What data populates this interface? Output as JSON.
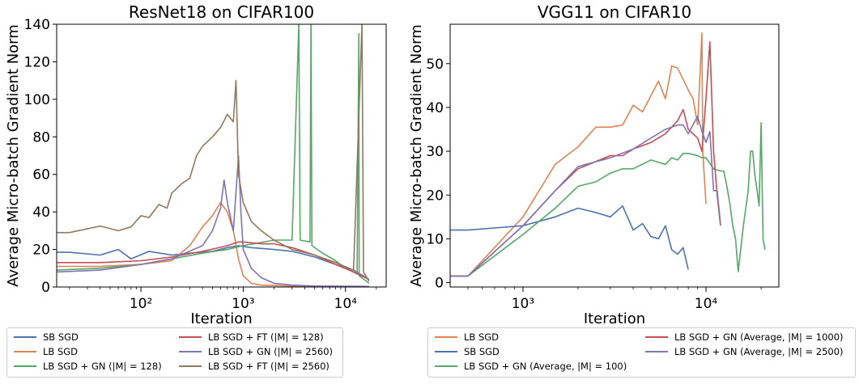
{
  "chart_data": [
    {
      "type": "line",
      "title": "ResNet18 on CIFAR100",
      "xlabel": "Iteration",
      "ylabel": "Average Micro-batch Gradient Norm",
      "xscale": "log",
      "xlim": [
        15,
        25000
      ],
      "ylim": [
        0,
        140
      ],
      "yticks": [
        0,
        20,
        40,
        60,
        80,
        100,
        120,
        140
      ],
      "xtick_labels": [
        "10²",
        "10³",
        "10⁴"
      ],
      "xticks": [
        100,
        1000,
        10000
      ],
      "legend_placement": "below",
      "series": [
        {
          "name": "SB SGD",
          "color": "#4c72b0",
          "points": [
            [
              15,
              18.5
            ],
            [
              20,
              18.5
            ],
            [
              40,
              17
            ],
            [
              60,
              20
            ],
            [
              80,
              15
            ],
            [
              120,
              19
            ],
            [
              200,
              17
            ],
            [
              300,
              18
            ],
            [
              500,
              19
            ],
            [
              700,
              21
            ],
            [
              900,
              22
            ],
            [
              1200,
              21
            ],
            [
              2000,
              20
            ],
            [
              3000,
              19
            ],
            [
              5000,
              16
            ],
            [
              8000,
              12
            ],
            [
              12000,
              9
            ],
            [
              17000,
              4
            ]
          ]
        },
        {
          "name": "LB SGD",
          "color": "#dd8452",
          "points": [
            [
              15,
              11
            ],
            [
              40,
              11
            ],
            [
              100,
              12
            ],
            [
              200,
              14
            ],
            [
              300,
              22
            ],
            [
              400,
              32
            ],
            [
              500,
              38
            ],
            [
              600,
              45
            ],
            [
              700,
              40
            ],
            [
              800,
              30
            ],
            [
              900,
              15
            ],
            [
              1000,
              6
            ],
            [
              1200,
              2
            ],
            [
              1500,
              1
            ],
            [
              3000,
              0.5
            ],
            [
              17000,
              0.3
            ]
          ]
        },
        {
          "name": "LB SGD + GN (|M| = 128)",
          "color": "#55a868",
          "points": [
            [
              15,
              9
            ],
            [
              40,
              10
            ],
            [
              100,
              12
            ],
            [
              200,
              15
            ],
            [
              400,
              18
            ],
            [
              700,
              20
            ],
            [
              1000,
              22
            ],
            [
              2000,
              25
            ],
            [
              3000,
              25
            ],
            [
              3500,
              140
            ],
            [
              3600,
              25
            ],
            [
              4500,
              24
            ],
            [
              4600,
              140
            ],
            [
              4700,
              22
            ],
            [
              6000,
              18
            ],
            [
              8000,
              14
            ],
            [
              10000,
              10
            ],
            [
              13000,
              7
            ],
            [
              13500,
              135
            ],
            [
              13600,
              6
            ],
            [
              17000,
              2
            ]
          ]
        },
        {
          "name": "LB SGD + FT (|M| = 128)",
          "color": "#c44e52",
          "points": [
            [
              15,
              13
            ],
            [
              40,
              13
            ],
            [
              100,
              14
            ],
            [
              200,
              16
            ],
            [
              400,
              19
            ],
            [
              700,
              22
            ],
            [
              900,
              24
            ],
            [
              1000,
              24
            ],
            [
              1500,
              23
            ],
            [
              2000,
              23
            ],
            [
              3000,
              21
            ],
            [
              5000,
              17
            ],
            [
              8000,
              12
            ],
            [
              12000,
              8
            ],
            [
              17000,
              4
            ]
          ]
        },
        {
          "name": "LB SGD + GN (|M| = 2560)",
          "color": "#8172b2",
          "points": [
            [
              15,
              8
            ],
            [
              40,
              9
            ],
            [
              100,
              12
            ],
            [
              200,
              15
            ],
            [
              400,
              22
            ],
            [
              500,
              30
            ],
            [
              600,
              42
            ],
            [
              650,
              57
            ],
            [
              700,
              45
            ],
            [
              800,
              30
            ],
            [
              900,
              70
            ],
            [
              950,
              40
            ],
            [
              1000,
              20
            ],
            [
              1200,
              10
            ],
            [
              1500,
              5
            ],
            [
              2000,
              2
            ],
            [
              3000,
              1
            ],
            [
              5000,
              0.5
            ],
            [
              17000,
              0.3
            ]
          ]
        },
        {
          "name": "LB SGD + FT (|M| = 2560)",
          "color": "#937860",
          "points": [
            [
              15,
              29
            ],
            [
              20,
              29
            ],
            [
              40,
              32.5
            ],
            [
              60,
              30
            ],
            [
              80,
              32
            ],
            [
              100,
              38
            ],
            [
              120,
              37
            ],
            [
              150,
              44
            ],
            [
              180,
              42
            ],
            [
              200,
              50
            ],
            [
              250,
              55
            ],
            [
              300,
              58
            ],
            [
              350,
              70
            ],
            [
              400,
              75
            ],
            [
              500,
              80
            ],
            [
              600,
              85
            ],
            [
              700,
              92
            ],
            [
              800,
              88
            ],
            [
              850,
              110
            ],
            [
              900,
              60
            ],
            [
              1000,
              45
            ],
            [
              1200,
              35
            ],
            [
              1500,
              30
            ],
            [
              2000,
              25
            ],
            [
              3000,
              20
            ],
            [
              5000,
              17
            ],
            [
              8000,
              13
            ],
            [
              12000,
              9
            ],
            [
              14500,
              140
            ],
            [
              15000,
              8
            ],
            [
              17000,
              3
            ]
          ]
        }
      ]
    },
    {
      "type": "line",
      "title": "VGG11 on CIFAR10",
      "xlabel": "Iteration",
      "ylabel": "Average Micro-batch Gradient Norm",
      "xscale": "log",
      "xlim": [
        400,
        25000
      ],
      "ylim": [
        -1,
        59
      ],
      "yticks": [
        0,
        10,
        20,
        30,
        40,
        50
      ],
      "xtick_labels": [
        "10³",
        "10⁴"
      ],
      "xticks": [
        1000,
        10000
      ],
      "legend_placement": "below",
      "series": [
        {
          "name": "LB SGD",
          "color": "#dd8452",
          "points": [
            [
              400,
              1.5
            ],
            [
              500,
              1.5
            ],
            [
              1000,
              15
            ],
            [
              1500,
              27
            ],
            [
              2000,
              31
            ],
            [
              2500,
              35.5
            ],
            [
              3000,
              35.5
            ],
            [
              3500,
              36
            ],
            [
              4000,
              40.5
            ],
            [
              4500,
              39
            ],
            [
              5500,
              46
            ],
            [
              6000,
              42
            ],
            [
              6500,
              49.5
            ],
            [
              7000,
              49
            ],
            [
              8000,
              44
            ],
            [
              8500,
              42
            ],
            [
              9000,
              36
            ],
            [
              9500,
              57
            ],
            [
              9600,
              30
            ],
            [
              10000,
              18
            ]
          ]
        },
        {
          "name": "SB SGD",
          "color": "#4c72b0",
          "points": [
            [
              400,
              12
            ],
            [
              500,
              12
            ],
            [
              1000,
              13
            ],
            [
              1500,
              15
            ],
            [
              2000,
              17
            ],
            [
              2500,
              16
            ],
            [
              3000,
              15
            ],
            [
              3500,
              17.5
            ],
            [
              4000,
              12
            ],
            [
              4500,
              13.5
            ],
            [
              5000,
              10.5
            ],
            [
              5500,
              10
            ],
            [
              6000,
              13
            ],
            [
              6500,
              7.5
            ],
            [
              7000,
              6.5
            ],
            [
              7500,
              8
            ],
            [
              8000,
              3
            ]
          ]
        },
        {
          "name": "LB SGD + GN (Average, |M| = 100)",
          "color": "#55a868",
          "points": [
            [
              400,
              1.5
            ],
            [
              500,
              1.5
            ],
            [
              1000,
              11
            ],
            [
              1500,
              17
            ],
            [
              2000,
              22
            ],
            [
              2500,
              23
            ],
            [
              3000,
              25
            ],
            [
              3500,
              26
            ],
            [
              4000,
              26
            ],
            [
              5000,
              28
            ],
            [
              6000,
              27
            ],
            [
              6500,
              28.5
            ],
            [
              7000,
              28
            ],
            [
              7500,
              29.5
            ],
            [
              8000,
              29.5
            ],
            [
              9000,
              29
            ],
            [
              9500,
              28.5
            ],
            [
              10000,
              28.5
            ],
            [
              11000,
              26
            ],
            [
              12000,
              25.5
            ],
            [
              12500,
              25.5
            ],
            [
              13000,
              22
            ],
            [
              13500,
              18
            ],
            [
              14000,
              13
            ],
            [
              14500,
              10
            ],
            [
              15000,
              2.5
            ],
            [
              16000,
              13
            ],
            [
              17000,
              21
            ],
            [
              17500,
              30
            ],
            [
              18000,
              30
            ],
            [
              18500,
              24.5
            ],
            [
              19000,
              21
            ],
            [
              19500,
              17.5
            ],
            [
              20000,
              36.5
            ],
            [
              20500,
              10
            ],
            [
              21000,
              7.5
            ]
          ]
        },
        {
          "name": "LB SGD + GN (Average, |M| = 1000)",
          "color": "#c44e52",
          "points": [
            [
              400,
              1.5
            ],
            [
              500,
              1.5
            ],
            [
              1000,
              13
            ],
            [
              1500,
              21
            ],
            [
              2000,
              26
            ],
            [
              3000,
              29
            ],
            [
              3500,
              29
            ],
            [
              4000,
              30.5
            ],
            [
              5000,
              32
            ],
            [
              6000,
              34
            ],
            [
              7000,
              37
            ],
            [
              7500,
              39.5
            ],
            [
              8000,
              35
            ],
            [
              9000,
              33
            ],
            [
              9500,
              30
            ],
            [
              10000,
              42
            ],
            [
              10500,
              55
            ],
            [
              11000,
              30
            ],
            [
              11500,
              20
            ],
            [
              12000,
              13
            ]
          ]
        },
        {
          "name": "LB SGD + GN (Average, |M| = 2500)",
          "color": "#8172b2",
          "points": [
            [
              400,
              1.5
            ],
            [
              500,
              1.5
            ],
            [
              1000,
              13
            ],
            [
              1500,
              21
            ],
            [
              2000,
              26.5
            ],
            [
              3000,
              28.5
            ],
            [
              4000,
              30.5
            ],
            [
              5000,
              33
            ],
            [
              6000,
              35
            ],
            [
              7000,
              36
            ],
            [
              7500,
              36
            ],
            [
              8000,
              34
            ],
            [
              9000,
              38
            ],
            [
              9500,
              34.5
            ],
            [
              10000,
              32
            ],
            [
              10500,
              34.5
            ],
            [
              11000,
              21
            ],
            [
              11500,
              21
            ],
            [
              12000,
              13.5
            ]
          ]
        }
      ]
    }
  ],
  "legend_left": {
    "items": [
      {
        "label": "SB SGD",
        "color": "#4c72b0"
      },
      {
        "label": "LB SGD",
        "color": "#dd8452"
      },
      {
        "label": "LB SGD + GN (|M| = 128)",
        "color": "#55a868"
      },
      {
        "label": "LB SGD + FT (|M| = 128)",
        "color": "#c44e52"
      },
      {
        "label": "LB SGD + GN (|M| = 2560)",
        "color": "#8172b2"
      },
      {
        "label": "LB SGD + FT (|M| = 2560)",
        "color": "#937860"
      }
    ]
  },
  "legend_right": {
    "items": [
      {
        "label": "LB SGD",
        "color": "#dd8452"
      },
      {
        "label": "SB SGD",
        "color": "#4c72b0"
      },
      {
        "label": "LB SGD + GN (Average, |M| = 100)",
        "color": "#55a868"
      },
      {
        "label": "LB SGD + GN (Average, |M| = 1000)",
        "color": "#c44e52"
      },
      {
        "label": "LB SGD + GN (Average, |M| = 2500)",
        "color": "#8172b2"
      }
    ]
  }
}
